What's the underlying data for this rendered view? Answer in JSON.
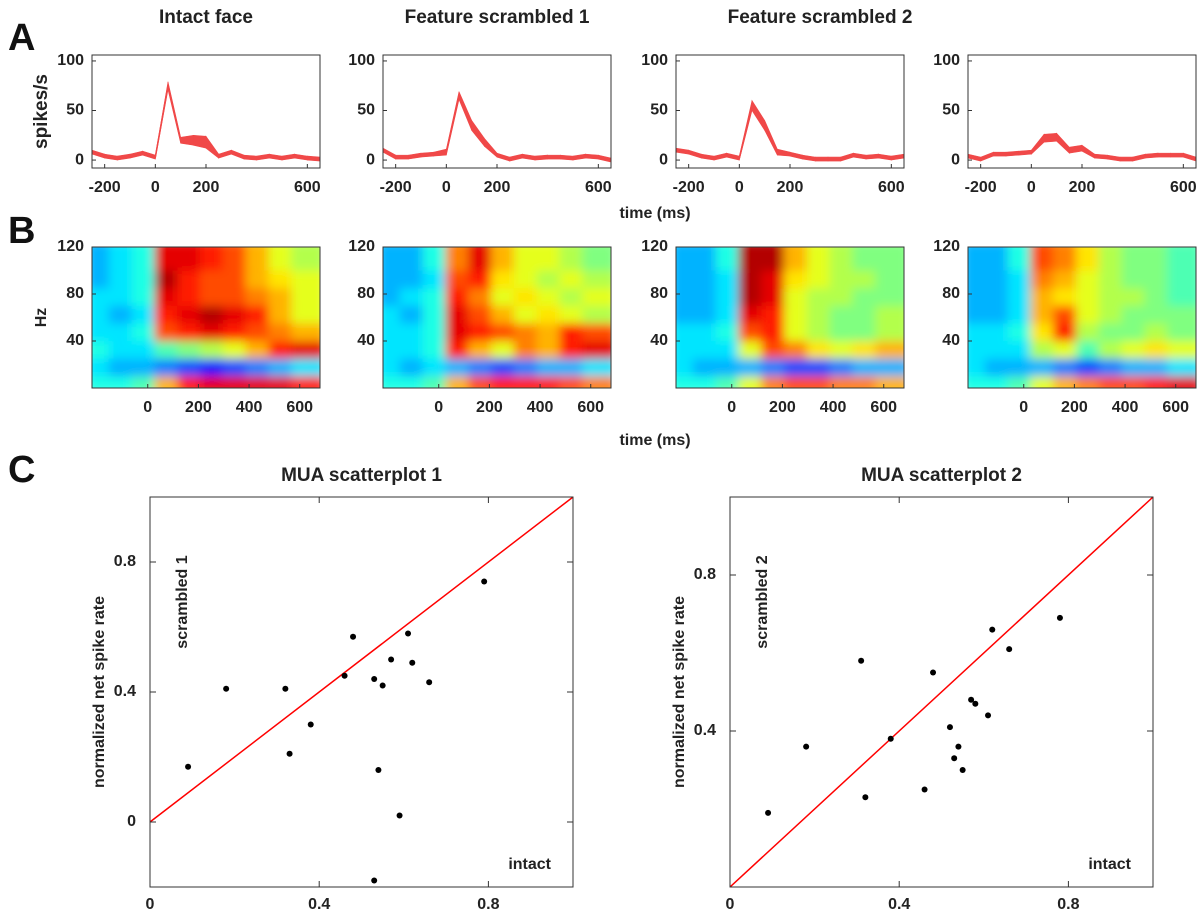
{
  "figure": {
    "panel_labels": [
      "A",
      "B",
      "C"
    ],
    "shared_xlabels": [
      "time (ms)",
      "time (ms)"
    ]
  },
  "chart_data": [
    {
      "type": "line",
      "title": "Intact face",
      "ylabel": "spikes/s",
      "x": [
        -250,
        -200,
        -150,
        -100,
        -50,
        0,
        50,
        100,
        150,
        200,
        250,
        300,
        350,
        400,
        450,
        500,
        550,
        600,
        650
      ],
      "values": [
        8,
        4,
        2,
        4,
        7,
        3,
        75,
        20,
        20,
        18,
        4,
        8,
        3,
        2,
        4,
        2,
        4,
        2,
        1
      ],
      "error": [
        2,
        2,
        2,
        2,
        2,
        2,
        4,
        3,
        5,
        6,
        2,
        2,
        2,
        2,
        2,
        2,
        2,
        2,
        2
      ],
      "color": "#f04848",
      "xlim": [
        -250,
        650
      ],
      "ylim": [
        -8,
        106
      ],
      "xticks": [
        -200,
        0,
        200,
        600
      ],
      "yticks": [
        0,
        50,
        100
      ]
    },
    {
      "type": "line",
      "title": "Feature scrambled 1",
      "x": [
        -250,
        -200,
        -150,
        -100,
        -50,
        0,
        50,
        100,
        150,
        200,
        250,
        300,
        350,
        400,
        450,
        500,
        550,
        600,
        650
      ],
      "values": [
        10,
        3,
        3,
        5,
        6,
        8,
        65,
        35,
        18,
        5,
        1,
        4,
        2,
        3,
        3,
        2,
        4,
        3,
        0
      ],
      "error": [
        2,
        2,
        2,
        2,
        2,
        3,
        4,
        5,
        4,
        2,
        2,
        2,
        2,
        2,
        2,
        2,
        2,
        2,
        2
      ],
      "color": "#f04848",
      "xlim": [
        -250,
        650
      ],
      "ylim": [
        -8,
        106
      ],
      "xticks": [
        -200,
        0,
        200,
        600
      ],
      "yticks": [
        0,
        50,
        100
      ]
    },
    {
      "type": "line",
      "title": "Feature scrambled 2",
      "x": [
        -250,
        -200,
        -150,
        -100,
        -50,
        0,
        50,
        100,
        150,
        200,
        250,
        300,
        350,
        400,
        450,
        500,
        550,
        600,
        650
      ],
      "values": [
        10,
        8,
        4,
        2,
        5,
        2,
        55,
        35,
        8,
        6,
        3,
        1,
        1,
        1,
        5,
        3,
        4,
        2,
        4
      ],
      "error": [
        2,
        2,
        2,
        2,
        2,
        2,
        5,
        5,
        3,
        2,
        2,
        2,
        2,
        2,
        2,
        2,
        2,
        2,
        2
      ],
      "color": "#f04848",
      "xlim": [
        -250,
        650
      ],
      "ylim": [
        -8,
        106
      ],
      "xticks": [
        -200,
        0,
        200,
        600
      ],
      "yticks": [
        0,
        50,
        100
      ]
    },
    {
      "type": "line",
      "x": [
        -250,
        -200,
        -150,
        -100,
        -50,
        0,
        50,
        100,
        150,
        200,
        250,
        300,
        350,
        400,
        450,
        500,
        550,
        600,
        650
      ],
      "values": [
        4,
        1,
        6,
        6,
        7,
        8,
        22,
        23,
        10,
        12,
        4,
        3,
        1,
        1,
        4,
        5,
        5,
        5,
        1
      ],
      "error": [
        2,
        2,
        2,
        2,
        2,
        2,
        4,
        4,
        3,
        3,
        2,
        2,
        2,
        2,
        2,
        2,
        2,
        2,
        2
      ],
      "color": "#f04848",
      "xlim": [
        -250,
        650
      ],
      "ylim": [
        -8,
        106
      ],
      "xticks": [
        -200,
        0,
        200,
        600
      ],
      "yticks": [
        0,
        50,
        100
      ]
    },
    {
      "type": "heatmap",
      "ylabel": "Hz",
      "x_edges": [
        -220,
        -130,
        -40,
        50,
        140,
        230,
        320,
        410,
        500,
        590,
        680
      ],
      "y_edges": [
        0,
        15,
        30,
        45,
        60,
        75,
        90,
        105,
        120
      ],
      "z": [
        [
          0.4,
          0.4,
          0.45,
          0.7,
          0.85,
          0.9,
          0.9,
          0.9,
          0.9,
          0.85
        ],
        [
          0.35,
          0.3,
          0.3,
          0.25,
          0.2,
          0.15,
          0.2,
          0.25,
          0.3,
          0.35
        ],
        [
          0.4,
          0.35,
          0.35,
          0.45,
          0.5,
          0.55,
          0.6,
          0.7,
          0.85,
          0.9
        ],
        [
          0.35,
          0.35,
          0.4,
          0.8,
          0.85,
          0.9,
          0.85,
          0.8,
          0.75,
          0.7
        ],
        [
          0.35,
          0.3,
          0.35,
          0.85,
          0.9,
          0.95,
          0.9,
          0.85,
          0.7,
          0.6
        ],
        [
          0.35,
          0.35,
          0.4,
          0.9,
          0.85,
          0.8,
          0.8,
          0.75,
          0.7,
          0.6
        ],
        [
          0.3,
          0.35,
          0.4,
          0.95,
          0.85,
          0.8,
          0.8,
          0.7,
          0.65,
          0.6
        ],
        [
          0.3,
          0.35,
          0.4,
          0.9,
          0.9,
          0.85,
          0.8,
          0.7,
          0.6,
          0.55
        ]
      ],
      "clim": [
        0,
        1
      ],
      "colormap": "jet",
      "xlim": [
        -220,
        680
      ],
      "ylim": [
        0,
        120
      ],
      "xticks": [
        0,
        200,
        400,
        600
      ],
      "yticks": [
        40,
        80,
        120
      ]
    },
    {
      "type": "heatmap",
      "x_edges": [
        -220,
        -130,
        -40,
        50,
        140,
        230,
        320,
        410,
        500,
        590,
        680
      ],
      "y_edges": [
        0,
        15,
        30,
        45,
        60,
        75,
        90,
        105,
        120
      ],
      "z": [
        [
          0.4,
          0.4,
          0.45,
          0.7,
          0.8,
          0.85,
          0.85,
          0.85,
          0.8,
          0.75
        ],
        [
          0.35,
          0.3,
          0.35,
          0.3,
          0.25,
          0.2,
          0.25,
          0.3,
          0.3,
          0.35
        ],
        [
          0.35,
          0.35,
          0.4,
          0.85,
          0.7,
          0.6,
          0.75,
          0.7,
          0.85,
          0.9
        ],
        [
          0.35,
          0.35,
          0.4,
          0.9,
          0.85,
          0.8,
          0.75,
          0.7,
          0.85,
          0.8
        ],
        [
          0.35,
          0.3,
          0.4,
          0.9,
          0.8,
          0.7,
          0.6,
          0.65,
          0.6,
          0.55
        ],
        [
          0.3,
          0.35,
          0.4,
          0.85,
          0.75,
          0.6,
          0.65,
          0.6,
          0.55,
          0.6
        ],
        [
          0.3,
          0.3,
          0.35,
          0.8,
          0.85,
          0.65,
          0.6,
          0.55,
          0.6,
          0.55
        ],
        [
          0.3,
          0.3,
          0.4,
          0.75,
          0.9,
          0.7,
          0.6,
          0.6,
          0.55,
          0.5
        ]
      ],
      "clim": [
        0,
        1
      ],
      "colormap": "jet",
      "xlim": [
        -220,
        680
      ],
      "ylim": [
        0,
        120
      ],
      "xticks": [
        0,
        200,
        400,
        600
      ],
      "yticks": [
        40,
        80,
        120
      ]
    },
    {
      "type": "heatmap",
      "x_edges": [
        -220,
        -130,
        -40,
        50,
        140,
        230,
        320,
        410,
        500,
        590,
        680
      ],
      "y_edges": [
        0,
        15,
        30,
        45,
        60,
        75,
        90,
        105,
        120
      ],
      "z": [
        [
          0.4,
          0.4,
          0.45,
          0.6,
          0.75,
          0.8,
          0.8,
          0.75,
          0.75,
          0.7
        ],
        [
          0.35,
          0.3,
          0.3,
          0.3,
          0.25,
          0.2,
          0.2,
          0.25,
          0.3,
          0.3
        ],
        [
          0.35,
          0.35,
          0.35,
          0.6,
          0.8,
          0.75,
          0.65,
          0.6,
          0.65,
          0.7
        ],
        [
          0.35,
          0.35,
          0.4,
          0.8,
          0.85,
          0.6,
          0.55,
          0.5,
          0.5,
          0.55
        ],
        [
          0.3,
          0.3,
          0.35,
          0.9,
          0.85,
          0.6,
          0.55,
          0.5,
          0.5,
          0.55
        ],
        [
          0.3,
          0.3,
          0.35,
          0.95,
          0.9,
          0.6,
          0.55,
          0.55,
          0.5,
          0.5
        ],
        [
          0.3,
          0.3,
          0.35,
          0.95,
          0.9,
          0.65,
          0.6,
          0.55,
          0.55,
          0.5
        ],
        [
          0.3,
          0.3,
          0.4,
          0.95,
          0.95,
          0.7,
          0.6,
          0.55,
          0.5,
          0.5
        ]
      ],
      "clim": [
        0,
        1
      ],
      "colormap": "jet",
      "xlim": [
        -220,
        680
      ],
      "ylim": [
        0,
        120
      ],
      "xticks": [
        0,
        200,
        400,
        600
      ],
      "yticks": [
        40,
        80,
        120
      ]
    },
    {
      "type": "heatmap",
      "x_edges": [
        -220,
        -130,
        -40,
        50,
        140,
        230,
        320,
        410,
        500,
        590,
        680
      ],
      "y_edges": [
        0,
        15,
        30,
        45,
        60,
        75,
        90,
        105,
        120
      ],
      "z": [
        [
          0.4,
          0.4,
          0.45,
          0.6,
          0.7,
          0.75,
          0.8,
          0.8,
          0.85,
          0.9
        ],
        [
          0.35,
          0.3,
          0.3,
          0.3,
          0.25,
          0.2,
          0.25,
          0.3,
          0.3,
          0.35
        ],
        [
          0.35,
          0.35,
          0.35,
          0.55,
          0.6,
          0.45,
          0.55,
          0.6,
          0.65,
          0.6
        ],
        [
          0.35,
          0.35,
          0.4,
          0.65,
          0.85,
          0.55,
          0.5,
          0.5,
          0.55,
          0.5
        ],
        [
          0.3,
          0.3,
          0.35,
          0.7,
          0.8,
          0.6,
          0.55,
          0.5,
          0.5,
          0.5
        ],
        [
          0.3,
          0.3,
          0.35,
          0.7,
          0.65,
          0.6,
          0.55,
          0.55,
          0.5,
          0.45
        ],
        [
          0.3,
          0.3,
          0.35,
          0.75,
          0.7,
          0.6,
          0.55,
          0.5,
          0.5,
          0.45
        ],
        [
          0.3,
          0.3,
          0.4,
          0.8,
          0.75,
          0.65,
          0.55,
          0.5,
          0.5,
          0.45
        ]
      ],
      "clim": [
        0,
        1
      ],
      "colormap": "jet",
      "xlim": [
        -220,
        680
      ],
      "ylim": [
        0,
        120
      ],
      "xticks": [
        0,
        200,
        400,
        600
      ],
      "yticks": [
        40,
        80,
        120
      ]
    },
    {
      "type": "scatter",
      "title": "MUA scatterplot 1",
      "ylabel": "normalized net spike rate",
      "annotations": [
        "scrambled 1",
        "intact"
      ],
      "x": [
        0.09,
        0.18,
        0.32,
        0.33,
        0.38,
        0.46,
        0.48,
        0.53,
        0.54,
        0.55,
        0.57,
        0.59,
        0.61,
        0.62,
        0.66,
        0.53,
        0.79
      ],
      "y": [
        0.17,
        0.41,
        0.41,
        0.21,
        0.3,
        0.45,
        0.57,
        0.44,
        0.16,
        0.42,
        0.5,
        0.02,
        0.58,
        0.49,
        0.43,
        -0.18,
        0.74
      ],
      "color": "#000000",
      "line_color": "#ff0000",
      "diagonal": true,
      "xlim": [
        0,
        1
      ],
      "ylim": [
        -0.2,
        1
      ],
      "xticks": [
        0,
        0.4,
        0.8
      ],
      "yticks": [
        0,
        0.4,
        0.8
      ]
    },
    {
      "type": "scatter",
      "title": "MUA scatterplot 2",
      "ylabel": "normalized net spike rate",
      "annotations": [
        "scrambled 2",
        "intact"
      ],
      "x": [
        0.09,
        0.18,
        0.31,
        0.32,
        0.38,
        0.48,
        0.46,
        0.52,
        0.53,
        0.54,
        0.55,
        0.57,
        0.58,
        0.61,
        0.62,
        0.66,
        0.78
      ],
      "y": [
        0.19,
        0.36,
        0.58,
        0.23,
        0.38,
        0.55,
        0.25,
        0.41,
        0.33,
        0.36,
        0.3,
        0.48,
        0.47,
        0.44,
        0.66,
        0.61,
        0.69
      ],
      "color": "#000000",
      "line_color": "#ff0000",
      "diagonal": true,
      "xlim": [
        0,
        1
      ],
      "ylim": [
        0,
        1
      ],
      "xticks": [
        0,
        0.4,
        0.8
      ],
      "yticks": [
        0.4,
        0.8
      ]
    }
  ]
}
